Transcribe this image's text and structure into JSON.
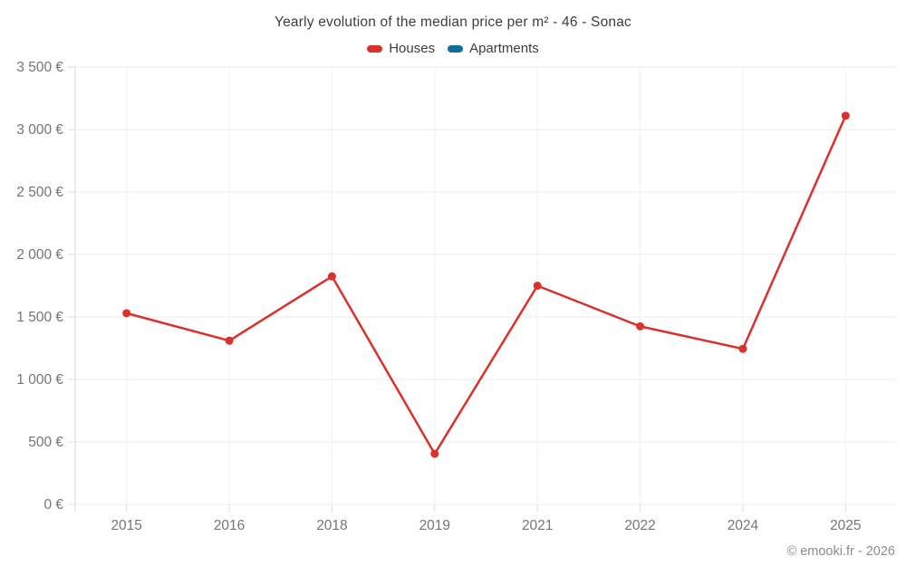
{
  "header": {
    "title": "Yearly evolution of the median price per m² - 46 - Sonac"
  },
  "legend": [
    {
      "label": "Houses",
      "color": "#db302b"
    },
    {
      "label": "Apartments",
      "color": "#0e6f9c"
    }
  ],
  "footer": {
    "credit": "© emooki.fr - 2026"
  },
  "colors": {
    "houses": "#db302b",
    "apartments": "#0e6f9c",
    "grid": "#ededed",
    "tick": "#dcdcdc",
    "axis": "#d9d9d9",
    "axis_label": "#757575",
    "title_text": "#3d3d3d",
    "footer_text": "#8c8c8c"
  },
  "chart_data": {
    "type": "line",
    "title": "Yearly evolution of the median price per m² - 46 - Sonac",
    "categories": [
      "2015",
      "2016",
      "2018",
      "2019",
      "2021",
      "2022",
      "2024",
      "2025"
    ],
    "series": [
      {
        "name": "Houses",
        "color": "#db302b",
        "values": [
          1530,
          1310,
          1825,
          405,
          1750,
          1425,
          1245,
          3110
        ]
      },
      {
        "name": "Apartments",
        "color": "#0e6f9c",
        "values": []
      }
    ],
    "xlabel": "",
    "ylabel": "",
    "ylim": [
      0,
      3500
    ],
    "ytick_step": 500,
    "ytick_labels": [
      "0 €",
      "500 €",
      "1 000 €",
      "1 500 €",
      "2 000 €",
      "2 500 €",
      "3 000 €",
      "3 500 €"
    ],
    "currency": "€",
    "grid": true,
    "legend_position": "top"
  }
}
